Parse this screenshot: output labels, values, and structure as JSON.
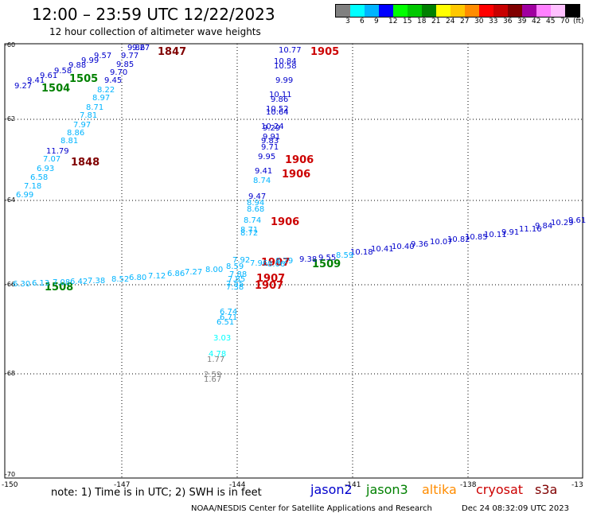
{
  "header": {
    "title": "12:00 – 23:59 UTC 12/22/2023",
    "subtitle": "12 hour collection of altimeter wave heights"
  },
  "colorbar": {
    "colors": [
      "#808080",
      "#00ffff",
      "#00b4ff",
      "#0000ff",
      "#00ff00",
      "#00c800",
      "#008000",
      "#ffff00",
      "#ffc800",
      "#ff8c00",
      "#ff0000",
      "#c80000",
      "#800000",
      "#a000a0",
      "#ff80ff",
      "#ffc0ff",
      "#000000"
    ],
    "labels": [
      "3",
      "6",
      "9",
      "12",
      "15",
      "18",
      "21",
      "24",
      "27",
      "30",
      "33",
      "36",
      "39",
      "42",
      "45",
      "70",
      "(ft)"
    ]
  },
  "axes": {
    "lat_labels": [
      "-60",
      "-62",
      "-64",
      "-66",
      "-68",
      "-70"
    ],
    "lon_labels": [
      "-150",
      "-147",
      "-144",
      "-141",
      "-138",
      "-13"
    ]
  },
  "legend": {
    "note": "note:  1) Time is in UTC;  2) SWH is in feet",
    "satellites": [
      {
        "name": "jason2",
        "color": "#0000cc"
      },
      {
        "name": "jason3",
        "color": "#008000"
      },
      {
        "name": "altika",
        "color": "#ff8c00"
      },
      {
        "name": "cryosat",
        "color": "#cc0000"
      },
      {
        "name": "s3a",
        "color": "#800000"
      }
    ]
  },
  "footer": {
    "agency": "NOAA/NESDIS Center for Satellite Applications and Research",
    "timestamp": "Dec 24 08:32:09 UTC 2023"
  },
  "time_labels": [
    {
      "text": "1847",
      "color": "#800000"
    },
    {
      "text": "1905",
      "color": "#cc0000"
    },
    {
      "text": "1504",
      "color": "#008000"
    },
    {
      "text": "1505",
      "color": "#008000"
    },
    {
      "text": "1848",
      "color": "#800000"
    },
    {
      "text": "1906",
      "color": "#cc0000"
    },
    {
      "text": "1906",
      "color": "#cc0000"
    },
    {
      "text": "1906",
      "color": "#cc0000"
    },
    {
      "text": "1907",
      "color": "#cc0000"
    },
    {
      "text": "1907",
      "color": "#cc0000"
    },
    {
      "text": "1907",
      "color": "#cc0000"
    },
    {
      "text": "1509",
      "color": "#008000"
    },
    {
      "text": "1508",
      "color": "#008000"
    }
  ],
  "wave_labels": [
    {
      "text": "9.27",
      "color": "#0000cc"
    },
    {
      "text": "9.41",
      "color": "#0000cc"
    },
    {
      "text": "9.61",
      "color": "#0000cc"
    },
    {
      "text": "9.58",
      "color": "#0000cc"
    },
    {
      "text": "9.88",
      "color": "#0000cc"
    },
    {
      "text": "9.99",
      "color": "#0000cc"
    },
    {
      "text": "9.57",
      "color": "#0000cc"
    },
    {
      "text": "9.85",
      "color": "#0000cc"
    },
    {
      "text": "9.70",
      "color": "#0000cc"
    },
    {
      "text": "9.45",
      "color": "#0000cc"
    },
    {
      "text": "9.77",
      "color": "#0000cc"
    },
    {
      "text": "9.86",
      "color": "#0000cc"
    },
    {
      "text": "9.27",
      "color": "#0000cc"
    },
    {
      "text": "8.22",
      "color": "#00b4ff"
    },
    {
      "text": "8.97",
      "color": "#00b4ff"
    },
    {
      "text": "8.71",
      "color": "#00b4ff"
    },
    {
      "text": "7.81",
      "color": "#00b4ff"
    },
    {
      "text": "7.97",
      "color": "#00b4ff"
    },
    {
      "text": "8.86",
      "color": "#00b4ff"
    },
    {
      "text": "8.81",
      "color": "#00b4ff"
    },
    {
      "text": "11.79",
      "color": "#0000cc"
    },
    {
      "text": "7.07",
      "color": "#00b4ff"
    },
    {
      "text": "6.93",
      "color": "#00b4ff"
    },
    {
      "text": "6.58",
      "color": "#00b4ff"
    },
    {
      "text": "7.18",
      "color": "#00b4ff"
    },
    {
      "text": "6.99",
      "color": "#00b4ff"
    },
    {
      "text": "10.77",
      "color": "#0000cc"
    },
    {
      "text": "10.84",
      "color": "#0000cc"
    },
    {
      "text": "10.58",
      "color": "#0000cc"
    },
    {
      "text": "9.99",
      "color": "#0000cc"
    },
    {
      "text": "10.11",
      "color": "#0000cc"
    },
    {
      "text": "9.86",
      "color": "#0000cc"
    },
    {
      "text": "10.52",
      "color": "#0000cc"
    },
    {
      "text": "10.64",
      "color": "#0000cc"
    },
    {
      "text": "10.24",
      "color": "#0000cc"
    },
    {
      "text": "9.29",
      "color": "#0000cc"
    },
    {
      "text": "9.91",
      "color": "#0000cc"
    },
    {
      "text": "9.83",
      "color": "#0000cc"
    },
    {
      "text": "9.71",
      "color": "#0000cc"
    },
    {
      "text": "9.95",
      "color": "#0000cc"
    },
    {
      "text": "9.41",
      "color": "#0000cc"
    },
    {
      "text": "8.74",
      "color": "#00b4ff"
    },
    {
      "text": "9.47",
      "color": "#0000cc"
    },
    {
      "text": "8.94",
      "color": "#00b4ff"
    },
    {
      "text": "8.68",
      "color": "#00b4ff"
    },
    {
      "text": "8.74",
      "color": "#00b4ff"
    },
    {
      "text": "8.71",
      "color": "#00b4ff"
    },
    {
      "text": "8.72",
      "color": "#00b4ff"
    },
    {
      "text": "10.18",
      "color": "#0000cc"
    },
    {
      "text": "10.41",
      "color": "#0000cc"
    },
    {
      "text": "10.40",
      "color": "#0000cc"
    },
    {
      "text": "9.36",
      "color": "#0000cc"
    },
    {
      "text": "10.07",
      "color": "#0000cc"
    },
    {
      "text": "10.82",
      "color": "#0000cc"
    },
    {
      "text": "10.85",
      "color": "#0000cc"
    },
    {
      "text": "10.11",
      "color": "#0000cc"
    },
    {
      "text": "9.91",
      "color": "#0000cc"
    },
    {
      "text": "11.16",
      "color": "#0000cc"
    },
    {
      "text": "9.84",
      "color": "#0000cc"
    },
    {
      "text": "10.29",
      "color": "#0000cc"
    },
    {
      "text": "9.61",
      "color": "#0000cc"
    },
    {
      "text": "9.38",
      "color": "#0000cc"
    },
    {
      "text": "9.55",
      "color": "#0000cc"
    },
    {
      "text": "8.59",
      "color": "#00b4ff"
    },
    {
      "text": "8.29",
      "color": "#00b4ff"
    },
    {
      "text": "7.92",
      "color": "#00b4ff"
    },
    {
      "text": "7.96",
      "color": "#00b4ff"
    },
    {
      "text": "8.06",
      "color": "#00b4ff"
    },
    {
      "text": "8.59",
      "color": "#00b4ff"
    },
    {
      "text": "8.00",
      "color": "#00b4ff"
    },
    {
      "text": "7.27",
      "color": "#00b4ff"
    },
    {
      "text": "6.86",
      "color": "#00b4ff"
    },
    {
      "text": "7.12",
      "color": "#00b4ff"
    },
    {
      "text": "6.80",
      "color": "#00b4ff"
    },
    {
      "text": "8.52",
      "color": "#00b4ff"
    },
    {
      "text": "7.38",
      "color": "#00b4ff"
    },
    {
      "text": "6.42",
      "color": "#00b4ff"
    },
    {
      "text": "7.08",
      "color": "#00b4ff"
    },
    {
      "text": "6.13",
      "color": "#00b4ff"
    },
    {
      "text": "6.30",
      "color": "#00b4ff"
    },
    {
      "text": "7.88",
      "color": "#00b4ff"
    },
    {
      "text": "7.85",
      "color": "#00b4ff"
    },
    {
      "text": "7.55",
      "color": "#00b4ff"
    },
    {
      "text": "7.38",
      "color": "#00b4ff"
    },
    {
      "text": "6.74",
      "color": "#00b4ff"
    },
    {
      "text": "6.71",
      "color": "#00b4ff"
    },
    {
      "text": "6.51",
      "color": "#00b4ff"
    },
    {
      "text": "3.03",
      "color": "#00ffff"
    },
    {
      "text": "4.78",
      "color": "#00ffff"
    },
    {
      "text": "1.77",
      "color": "#808080"
    },
    {
      "text": "2.59",
      "color": "#808080"
    },
    {
      "text": "1.67",
      "color": "#808080"
    }
  ]
}
